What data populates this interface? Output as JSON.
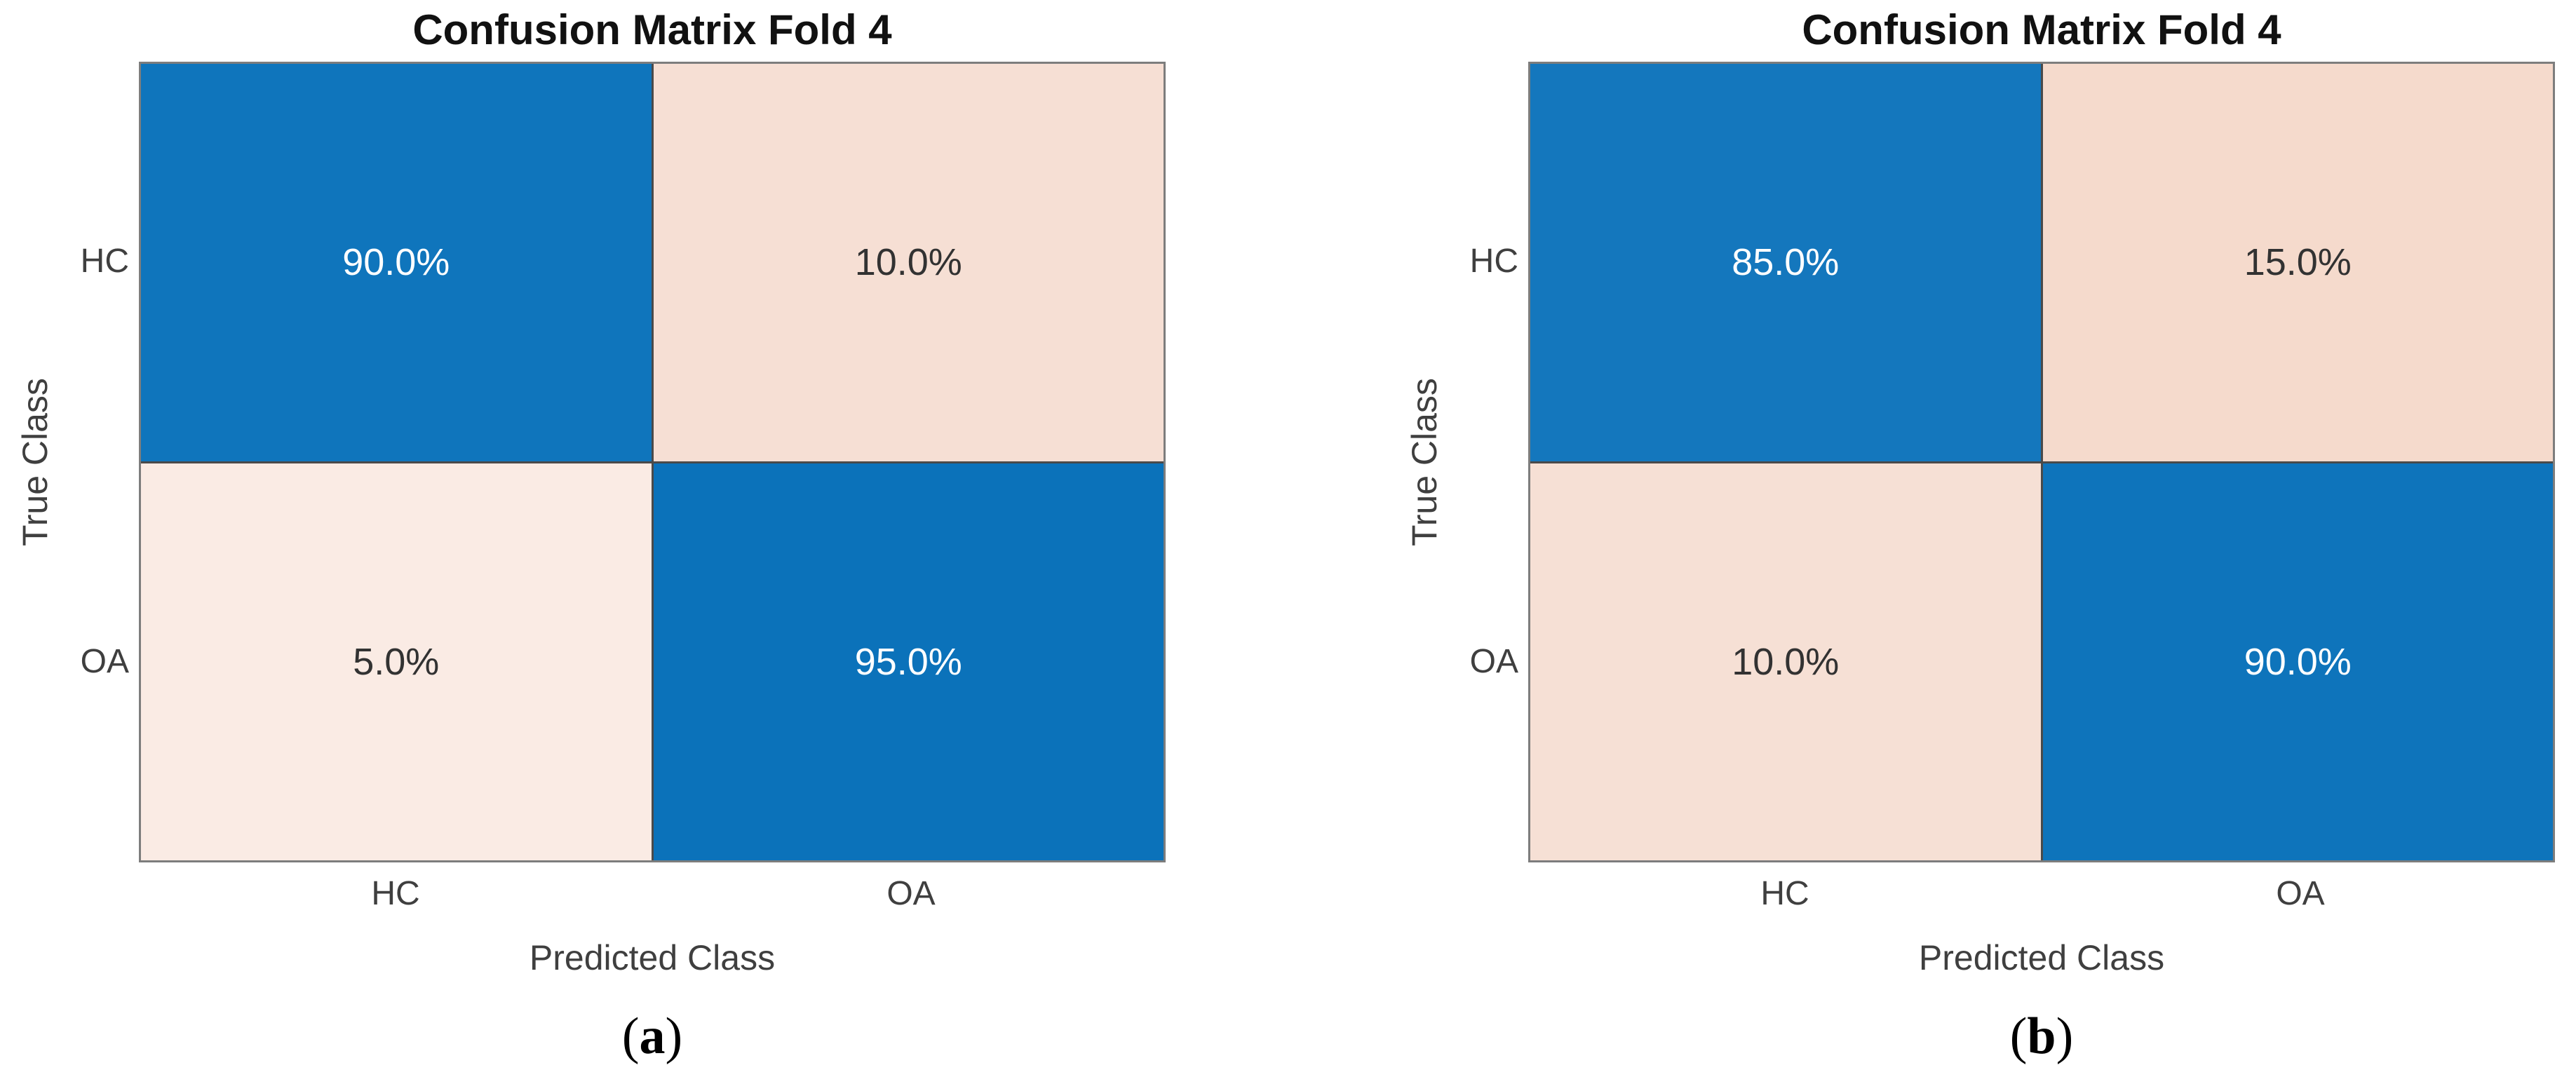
{
  "figure": {
    "background": "#ffffff",
    "panels": [
      {
        "id": "a",
        "title": "Confusion Matrix Fold 4",
        "x_axis_label": "Predicted Class",
        "y_axis_label": "True Class",
        "x_tick_labels": [
          "HC",
          "OA"
        ],
        "y_tick_labels": [
          "HC",
          "OA"
        ],
        "caption_open": "(",
        "caption_letter": "a",
        "caption_close": ")",
        "cells": [
          {
            "true_class": "HC",
            "predicted_class": "HC",
            "label": "90.0%",
            "bg": "#0f75bc",
            "fg": "#ffffff"
          },
          {
            "true_class": "HC",
            "predicted_class": "OA",
            "label": "10.0%",
            "bg": "#f6dfd4",
            "fg": "#323232"
          },
          {
            "true_class": "OA",
            "predicted_class": "HC",
            "label": "5.0%",
            "bg": "#faebe4",
            "fg": "#323232"
          },
          {
            "true_class": "OA",
            "predicted_class": "OA",
            "label": "95.0%",
            "bg": "#0b72ba",
            "fg": "#ffffff"
          }
        ]
      },
      {
        "id": "b",
        "title": "Confusion Matrix Fold 4",
        "x_axis_label": "Predicted Class",
        "y_axis_label": "True Class",
        "x_tick_labels": [
          "HC",
          "OA"
        ],
        "y_tick_labels": [
          "HC",
          "OA"
        ],
        "caption_open": "(",
        "caption_letter": "b",
        "caption_close": ")",
        "cells": [
          {
            "true_class": "HC",
            "predicted_class": "HC",
            "label": "85.0%",
            "bg": "#1477bd",
            "fg": "#ffffff"
          },
          {
            "true_class": "HC",
            "predicted_class": "OA",
            "label": "15.0%",
            "bg": "#f5dacc",
            "fg": "#323232"
          },
          {
            "true_class": "OA",
            "predicted_class": "HC",
            "label": "10.0%",
            "bg": "#f6e0d5",
            "fg": "#323232"
          },
          {
            "true_class": "OA",
            "predicted_class": "OA",
            "label": "90.0%",
            "bg": "#0e74bb",
            "fg": "#ffffff"
          }
        ]
      }
    ]
  },
  "chart_data": [
    {
      "type": "heatmap",
      "subtype": "confusion_matrix",
      "panel": "a",
      "title": "Confusion Matrix Fold 4",
      "xlabel": "Predicted Class",
      "ylabel": "True Class",
      "x_categories": [
        "HC",
        "OA"
      ],
      "y_categories": [
        "HC",
        "OA"
      ],
      "values_percent": [
        [
          90.0,
          10.0
        ],
        [
          5.0,
          95.0
        ]
      ],
      "cell_text": [
        [
          "90.0%",
          "10.0%"
        ],
        [
          "5.0%",
          "95.0%"
        ]
      ],
      "legend": "none",
      "grid": "cell borders only",
      "color_rule": "diagonal cells blue, off-diagonal cells light salmon tinted by value"
    },
    {
      "type": "heatmap",
      "subtype": "confusion_matrix",
      "panel": "b",
      "title": "Confusion Matrix Fold 4",
      "xlabel": "Predicted Class",
      "ylabel": "True Class",
      "x_categories": [
        "HC",
        "OA"
      ],
      "y_categories": [
        "HC",
        "OA"
      ],
      "values_percent": [
        [
          85.0,
          15.0
        ],
        [
          10.0,
          90.0
        ]
      ],
      "cell_text": [
        [
          "85.0%",
          "15.0%"
        ],
        [
          "10.0%",
          "90.0%"
        ]
      ],
      "legend": "none",
      "grid": "cell borders only",
      "color_rule": "diagonal cells blue, off-diagonal cells light salmon tinted by value"
    }
  ],
  "colors": {
    "diagonal_blue": "#0f75bc",
    "off_diagonal_salmon": "#f6dfd4",
    "gridline": "#4a4a4a",
    "axes_box": "#7d7d7d",
    "axis_text": "#3f3f3f",
    "title_text": "#111111",
    "cell_text_on_blue": "#ffffff",
    "cell_text_on_salmon": "#323232"
  }
}
